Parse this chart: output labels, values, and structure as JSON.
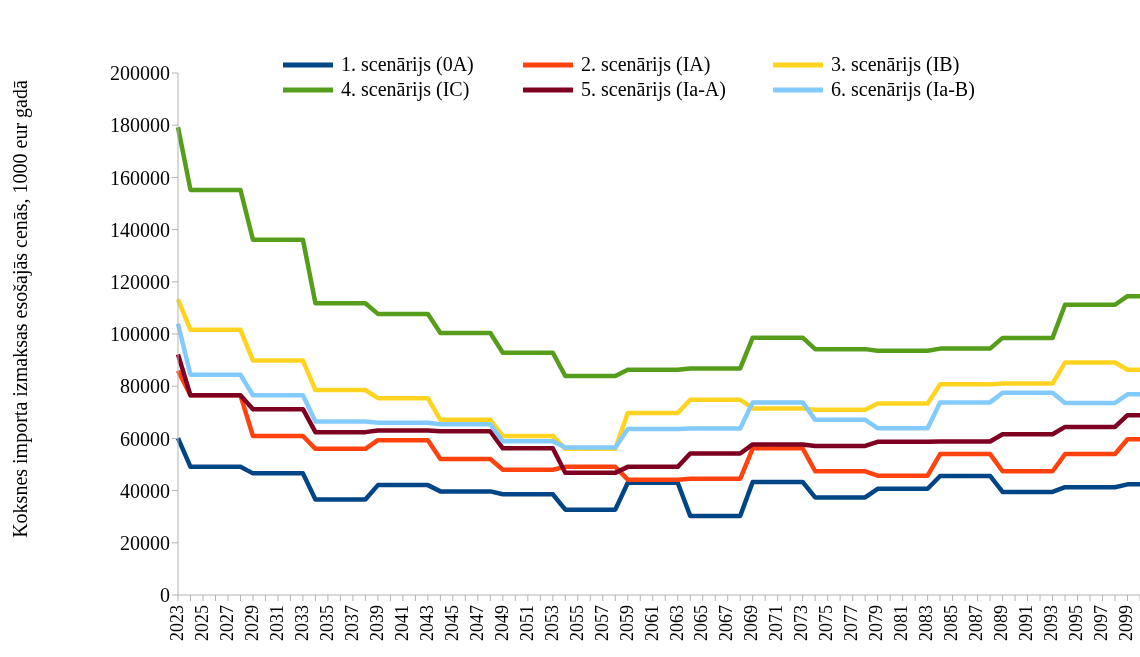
{
  "chart_data": {
    "type": "line",
    "ylabel": "Koksnes importa izmaksas esošajās cenās, 1000 eur gadā",
    "categories": [
      "2023",
      null,
      "2025",
      null,
      "2027",
      null,
      "2029",
      null,
      "2031",
      null,
      "2033",
      null,
      "2035",
      null,
      "2037",
      null,
      "2039",
      null,
      "2041",
      null,
      "2043",
      null,
      "2045",
      null,
      "2047",
      null,
      "2049",
      null,
      "2051",
      null,
      "2053",
      null,
      "2055",
      null,
      "2057",
      null,
      "2059",
      null,
      "2061",
      null,
      "2063",
      null,
      "2065",
      null,
      "2067",
      null,
      "2069",
      null,
      "2071",
      null,
      "2073",
      null,
      "2075",
      null,
      "2077",
      null,
      "2079",
      null,
      "2081",
      null,
      "2083",
      null,
      "2085",
      null,
      "2087",
      null,
      "2089",
      null,
      "2091",
      null,
      "2093",
      null,
      "2095",
      null,
      "2097",
      null,
      "2099",
      null
    ],
    "series": [
      {
        "name": "1. scenārijs (0A)",
        "color": "#004586",
        "values": [
          60100,
          49100,
          49100,
          49100,
          49100,
          49100,
          46600,
          46600,
          46600,
          46600,
          46600,
          36600,
          36600,
          36600,
          36600,
          36600,
          42100,
          42100,
          42100,
          42100,
          42100,
          39700,
          39700,
          39700,
          39700,
          39700,
          38600,
          38600,
          38600,
          38600,
          38600,
          32700,
          32700,
          32700,
          32700,
          32700,
          43000,
          43000,
          43000,
          43000,
          43000,
          30300,
          30300,
          30300,
          30300,
          30300,
          43300,
          43300,
          43300,
          43300,
          43300,
          37400,
          37400,
          37400,
          37400,
          37400,
          40700,
          40700,
          40700,
          40700,
          40700,
          45600,
          45600,
          45600,
          45600,
          45600,
          39500,
          39500,
          39500,
          39500,
          39500,
          41300,
          41300,
          41300,
          41300,
          41300,
          42400,
          42400
        ]
      },
      {
        "name": "2. scenārijs (IA)",
        "color": "#ff420e",
        "values": [
          85900,
          76500,
          76500,
          76500,
          76500,
          76500,
          60900,
          60900,
          60900,
          60900,
          60900,
          56000,
          56000,
          56000,
          56000,
          56000,
          59300,
          59300,
          59300,
          59300,
          59300,
          52100,
          52100,
          52100,
          52100,
          52100,
          48000,
          48000,
          48000,
          48000,
          48000,
          49100,
          49100,
          49100,
          49100,
          49100,
          44200,
          44200,
          44200,
          44200,
          44200,
          44500,
          44500,
          44500,
          44500,
          44500,
          56200,
          56200,
          56200,
          56200,
          56200,
          47400,
          47400,
          47400,
          47400,
          47400,
          45700,
          45700,
          45700,
          45700,
          45700,
          54000,
          54000,
          54000,
          54000,
          54000,
          47400,
          47400,
          47400,
          47400,
          47400,
          54000,
          54000,
          54000,
          54000,
          54000,
          59700,
          59700
        ]
      },
      {
        "name": "3. scenārijs (IB)",
        "color": "#ffd320",
        "values": [
          113300,
          101600,
          101600,
          101600,
          101600,
          101600,
          89800,
          89800,
          89800,
          89800,
          89800,
          78500,
          78500,
          78500,
          78500,
          78500,
          75400,
          75400,
          75400,
          75400,
          75400,
          67100,
          67100,
          67100,
          67100,
          67100,
          60900,
          60900,
          60900,
          60900,
          60900,
          56000,
          56000,
          56000,
          56000,
          56000,
          69700,
          69700,
          69700,
          69700,
          69700,
          74800,
          74800,
          74800,
          74800,
          74800,
          71500,
          71500,
          71500,
          71500,
          71500,
          71000,
          71000,
          71000,
          71000,
          71000,
          73400,
          73400,
          73400,
          73400,
          73400,
          80700,
          80700,
          80700,
          80700,
          80700,
          81000,
          81000,
          81000,
          81000,
          81000,
          89100,
          89100,
          89100,
          89100,
          89100,
          86300,
          86300
        ]
      },
      {
        "name": "4. scenārijs (IC)",
        "color": "#579d1c",
        "values": [
          179200,
          155200,
          155200,
          155200,
          155200,
          155200,
          136100,
          136100,
          136100,
          136100,
          136100,
          111800,
          111800,
          111800,
          111800,
          111800,
          107700,
          107700,
          107700,
          107700,
          107700,
          100400,
          100400,
          100400,
          100400,
          100400,
          92800,
          92800,
          92800,
          92800,
          92800,
          83900,
          83900,
          83900,
          83900,
          83900,
          86300,
          86300,
          86300,
          86300,
          86300,
          86800,
          86800,
          86800,
          86800,
          86800,
          98600,
          98600,
          98600,
          98600,
          98600,
          94200,
          94200,
          94200,
          94200,
          94200,
          93600,
          93600,
          93600,
          93600,
          93600,
          94400,
          94400,
          94400,
          94400,
          94400,
          98500,
          98500,
          98500,
          98500,
          98500,
          111200,
          111200,
          111200,
          111200,
          111200,
          114500,
          114500
        ]
      },
      {
        "name": "5. scenārijs (Ia-A)",
        "color": "#7e0021",
        "values": [
          92200,
          76500,
          76500,
          76500,
          76500,
          76500,
          71200,
          71200,
          71200,
          71200,
          71200,
          62400,
          62400,
          62400,
          62400,
          62400,
          63000,
          63000,
          63000,
          63000,
          63000,
          62700,
          62700,
          62700,
          62700,
          62700,
          56200,
          56200,
          56200,
          56200,
          56200,
          46800,
          46800,
          46800,
          46800,
          46800,
          49100,
          49100,
          49100,
          49100,
          49100,
          54200,
          54200,
          54200,
          54200,
          54200,
          57700,
          57700,
          57700,
          57700,
          57700,
          57100,
          57100,
          57100,
          57100,
          57100,
          58700,
          58700,
          58700,
          58700,
          58700,
          58800,
          58800,
          58800,
          58800,
          58800,
          61600,
          61600,
          61600,
          61600,
          61600,
          64400,
          64400,
          64400,
          64400,
          64400,
          68900,
          68900
        ]
      },
      {
        "name": "6. scenārijs (Ia-B)",
        "color": "#83caff",
        "values": [
          103900,
          84400,
          84400,
          84400,
          84400,
          84400,
          76500,
          76500,
          76500,
          76500,
          76500,
          66500,
          66500,
          66500,
          66500,
          66500,
          66000,
          66000,
          66000,
          66000,
          66000,
          65400,
          65400,
          65400,
          65400,
          65400,
          58900,
          58900,
          58900,
          58900,
          58900,
          56500,
          56500,
          56500,
          56500,
          56500,
          63600,
          63600,
          63600,
          63600,
          63600,
          63800,
          63800,
          63800,
          63800,
          63800,
          73800,
          73800,
          73800,
          73800,
          73800,
          67100,
          67100,
          67100,
          67100,
          67100,
          63900,
          63900,
          63900,
          63900,
          63900,
          73800,
          73800,
          73800,
          73800,
          73800,
          77500,
          77500,
          77500,
          77500,
          77500,
          73600,
          73600,
          73600,
          73600,
          73600,
          76900,
          76900
        ]
      }
    ],
    "ylim": [
      0,
      200000
    ],
    "yticks": [
      0,
      20000,
      40000,
      60000,
      80000,
      100000,
      120000,
      140000,
      160000,
      180000,
      200000
    ],
    "grid": false,
    "legend": "top",
    "marker": "none",
    "line_style": "solid"
  }
}
